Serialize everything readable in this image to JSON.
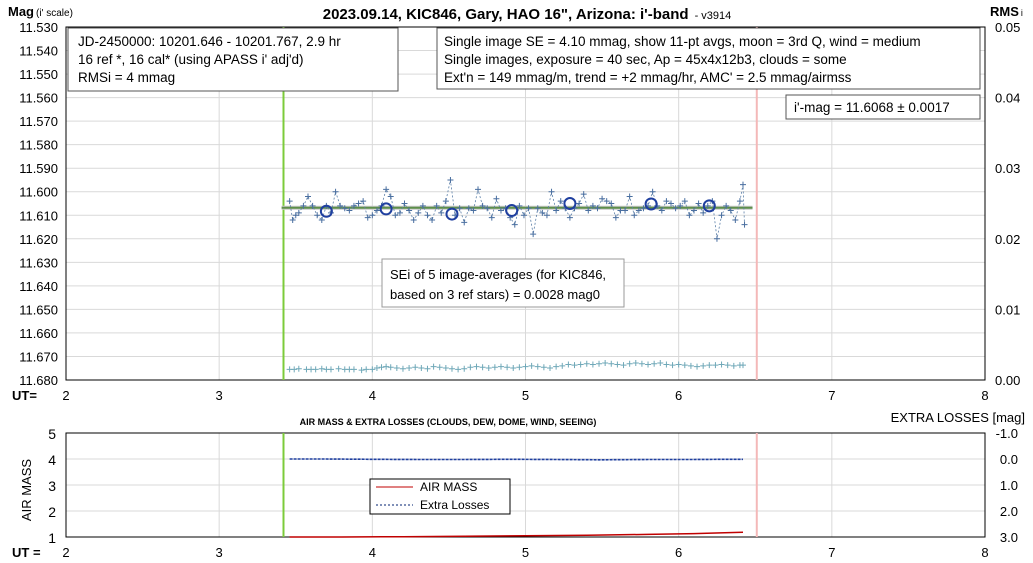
{
  "chart_data": [
    {
      "type": "scatter",
      "title": "2023.09.14, KIC846, Gary, HAO 16\", Arizona: i'-band",
      "version": "- v3914",
      "ylabel": "Mag",
      "ylabel_note": "(i' scale)",
      "y2label": "RMS",
      "y2label_note": "i",
      "xlabel": "UT=",
      "xlim": [
        2,
        8
      ],
      "ylim": [
        11.53,
        11.68
      ],
      "y_reversed": true,
      "y2lim": [
        0.0,
        0.05
      ],
      "x_ticks": [
        "2",
        "3",
        "4",
        "5",
        "6",
        "7",
        "8"
      ],
      "y_ticks": [
        "11.530",
        "11.540",
        "11.550",
        "11.560",
        "11.570",
        "11.580",
        "11.590",
        "11.600",
        "11.610",
        "11.620",
        "11.630",
        "11.640",
        "11.650",
        "11.660",
        "11.670",
        "11.680"
      ],
      "y2_ticks": [
        "0.05",
        "0.04",
        "0.03",
        "0.02",
        "0.01",
        "0.00"
      ],
      "grid": true,
      "markers": {
        "start_ut": 3.42,
        "end_ut": 6.51
      },
      "fit_mag": 11.6068,
      "annotations": {
        "box1": [
          "JD-2450000: 10201.646 - 10201.767, 2.9  hr",
          "16 ref *, 16 cal* (using APASS i' adj'd)",
          "RMSi = 4 mmag"
        ],
        "box2": [
          "Single image SE = 4.10 mmag, show 11-pt avgs, moon = 3rd Q, wind = medium",
          "Single images, exposure = 40 sec, Ap = 45x4x12b3, clouds = some",
          "Ext'n = 149 mmag/m, trend = +2 mmag/hr, AMC' = 2.5 mmag/airmss"
        ],
        "box3": [
          "i'-mag = 11.6068 ± 0.0017"
        ],
        "box4": [
          "SEi of 5 image-averages (for KIC846,",
          "based on 3 ref stars) = 0.0028 mag0"
        ]
      },
      "series": [
        {
          "kind": "single images",
          "x": [
            3.46,
            3.48,
            3.5,
            3.52,
            3.55,
            3.58,
            3.61,
            3.64,
            3.67,
            3.7,
            3.73,
            3.76,
            3.79,
            3.82,
            3.85,
            3.88,
            3.91,
            3.94,
            3.97,
            4.0,
            4.03,
            4.06,
            4.09,
            4.12,
            4.15,
            4.18,
            4.21,
            4.24,
            4.27,
            4.3,
            4.33,
            4.36,
            4.39,
            4.42,
            4.45,
            4.48,
            4.51,
            4.54,
            4.57,
            4.6,
            4.63,
            4.66,
            4.69,
            4.72,
            4.75,
            4.78,
            4.81,
            4.84,
            4.87,
            4.9,
            4.93,
            4.96,
            4.99,
            5.02,
            5.05,
            5.08,
            5.11,
            5.14,
            5.17,
            5.2,
            5.23,
            5.26,
            5.29,
            5.32,
            5.35,
            5.38,
            5.41,
            5.44,
            5.47,
            5.5,
            5.53,
            5.56,
            5.59,
            5.62,
            5.65,
            5.68,
            5.71,
            5.74,
            5.77,
            5.8,
            5.83,
            5.86,
            5.89,
            5.92,
            5.95,
            5.98,
            6.01,
            6.04,
            6.07,
            6.1,
            6.13,
            6.16,
            6.19,
            6.22,
            6.25,
            6.28,
            6.31,
            6.34,
            6.37,
            6.4,
            6.42,
            6.43
          ],
          "y": [
            11.604,
            11.612,
            11.61,
            11.609,
            11.606,
            11.602,
            11.606,
            11.61,
            11.612,
            11.606,
            11.609,
            11.6,
            11.606,
            11.607,
            11.608,
            11.606,
            11.605,
            11.604,
            11.611,
            11.61,
            11.608,
            11.606,
            11.599,
            11.602,
            11.61,
            11.609,
            11.605,
            11.608,
            11.612,
            11.609,
            11.606,
            11.61,
            11.612,
            11.606,
            11.609,
            11.604,
            11.595,
            11.61,
            11.607,
            11.613,
            11.607,
            11.608,
            11.599,
            11.606,
            11.607,
            11.611,
            11.603,
            11.608,
            11.607,
            11.611,
            11.614,
            11.606,
            11.61,
            11.607,
            11.618,
            11.607,
            11.609,
            11.61,
            11.6,
            11.608,
            11.604,
            11.607,
            11.611,
            11.607,
            11.605,
            11.601,
            11.608,
            11.606,
            11.607,
            11.603,
            11.604,
            11.605,
            11.611,
            11.608,
            11.608,
            11.602,
            11.61,
            11.608,
            11.607,
            11.606,
            11.6,
            11.606,
            11.608,
            11.604,
            11.605,
            11.607,
            11.606,
            11.604,
            11.61,
            11.608,
            11.605,
            11.609,
            11.606,
            11.604,
            11.62,
            11.61,
            11.606,
            11.608,
            11.612,
            11.604,
            11.597,
            11.614
          ]
        },
        {
          "kind": "11-pt averages",
          "x": [
            3.7,
            4.09,
            4.52,
            4.91,
            5.29,
            5.82,
            6.2
          ],
          "y": [
            11.6083,
            11.6073,
            11.6095,
            11.608,
            11.605,
            11.6052,
            11.606
          ]
        },
        {
          "kind": "RMS",
          "x": [
            3.46,
            3.49,
            3.52,
            3.57,
            3.6,
            3.63,
            3.67,
            3.7,
            3.73,
            3.78,
            3.82,
            3.85,
            3.88,
            3.93,
            3.96,
            4.0,
            4.03,
            4.06,
            4.09,
            4.12,
            4.16,
            4.2,
            4.24,
            4.28,
            4.32,
            4.36,
            4.4,
            4.44,
            4.48,
            4.52,
            4.56,
            4.6,
            4.64,
            4.68,
            4.72,
            4.76,
            4.8,
            4.84,
            4.88,
            4.92,
            4.96,
            5.0,
            5.04,
            5.08,
            5.12,
            5.16,
            5.2,
            5.24,
            5.28,
            5.32,
            5.36,
            5.4,
            5.44,
            5.48,
            5.52,
            5.56,
            5.6,
            5.64,
            5.68,
            5.72,
            5.76,
            5.8,
            5.84,
            5.88,
            5.92,
            5.96,
            6.0,
            6.04,
            6.08,
            6.12,
            6.16,
            6.2,
            6.24,
            6.28,
            6.32,
            6.36,
            6.4,
            6.42
          ],
          "y": [
            0.0015,
            0.0015,
            0.0016,
            0.0015,
            0.0015,
            0.0015,
            0.0016,
            0.0015,
            0.0015,
            0.0016,
            0.0015,
            0.0015,
            0.0015,
            0.0014,
            0.0015,
            0.0015,
            0.0017,
            0.0018,
            0.0019,
            0.0018,
            0.0017,
            0.0016,
            0.0017,
            0.0018,
            0.0017,
            0.0016,
            0.0019,
            0.0018,
            0.0017,
            0.0016,
            0.0015,
            0.0016,
            0.0018,
            0.0019,
            0.0018,
            0.0017,
            0.0018,
            0.0019,
            0.0018,
            0.0017,
            0.0018,
            0.0019,
            0.002,
            0.0019,
            0.0018,
            0.0017,
            0.0019,
            0.002,
            0.0022,
            0.0021,
            0.0022,
            0.0023,
            0.0022,
            0.0023,
            0.0024,
            0.0023,
            0.0022,
            0.0021,
            0.0023,
            0.0024,
            0.0023,
            0.0022,
            0.0023,
            0.0024,
            0.0022,
            0.0021,
            0.0022,
            0.0021,
            0.002,
            0.0019,
            0.002,
            0.0021,
            0.0021,
            0.0022,
            0.0021,
            0.002,
            0.0021,
            0.0021
          ]
        }
      ]
    },
    {
      "type": "line",
      "title": "AIR MASS & EXTRA LOSSES (CLOUDS, DEW, DOME, WIND, SEEING)",
      "ylabel": "AIR MASS",
      "y2label": "EXTRA LOSSES [mag]",
      "xlabel": "UT =",
      "xlim": [
        2,
        8
      ],
      "ylim": [
        1,
        5
      ],
      "y2lim": [
        3.0,
        -1.0
      ],
      "x_ticks": [
        "2",
        "3",
        "4",
        "5",
        "6",
        "7",
        "8"
      ],
      "y_ticks": [
        "5",
        "4",
        "3",
        "2",
        "1"
      ],
      "y2_ticks": [
        "-1.0",
        "0.0",
        "1.0",
        "2.0",
        "3.0"
      ],
      "legend": [
        "AIR MASS",
        "Extra Losses"
      ],
      "markers": {
        "start_ut": 3.42,
        "end_ut": 6.51
      },
      "series": [
        {
          "name": "AIR MASS",
          "x": [
            3.46,
            3.8,
            4.2,
            4.6,
            5.0,
            5.4,
            5.8,
            6.1,
            6.3,
            6.42
          ],
          "y": [
            1.0,
            1.0,
            1.01,
            1.03,
            1.05,
            1.07,
            1.1,
            1.13,
            1.16,
            1.18
          ]
        },
        {
          "name": "Extra Losses",
          "x": [
            3.46,
            3.7,
            4.0,
            4.3,
            4.6,
            4.9,
            5.2,
            5.5,
            5.8,
            6.1,
            6.3,
            6.42
          ],
          "y": [
            0.0,
            0.0,
            0.01,
            0.02,
            0.02,
            0.01,
            0.02,
            0.03,
            0.02,
            0.02,
            0.01,
            0.01
          ]
        }
      ]
    }
  ]
}
